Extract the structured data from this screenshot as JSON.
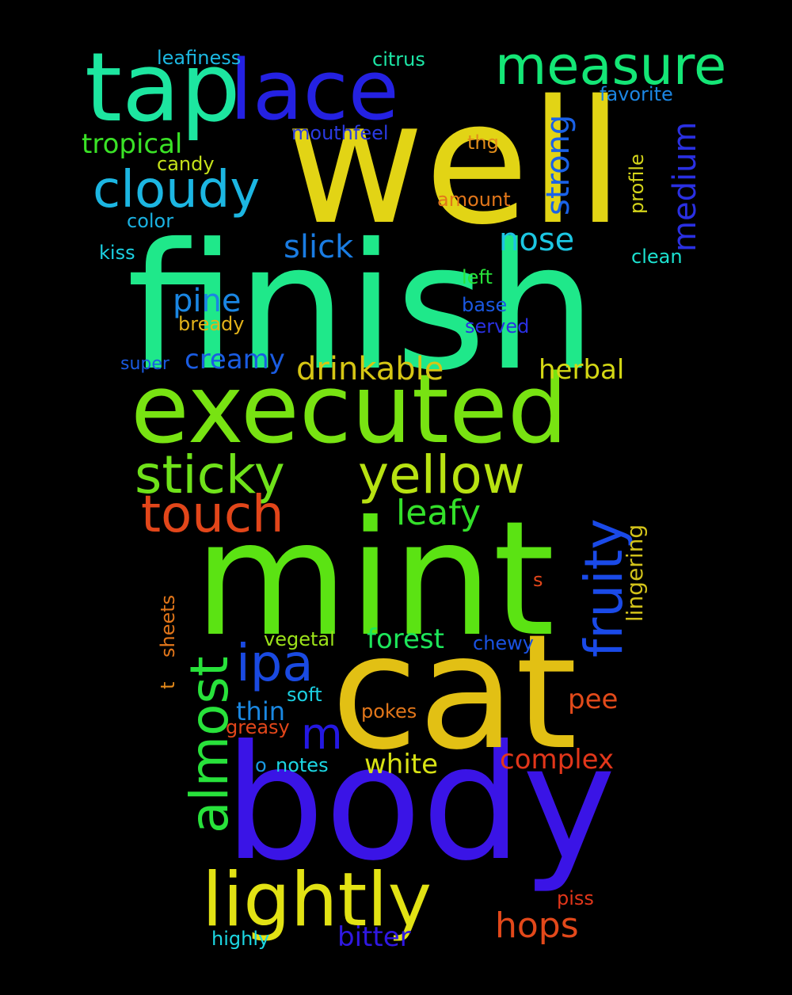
{
  "background": "#000000",
  "words": [
    {
      "text": "finish",
      "color": "#1fe88a"
    },
    {
      "text": "well",
      "color": "#e2d415"
    },
    {
      "text": "mint",
      "color": "#5be313"
    },
    {
      "text": "body",
      "color": "#3a14e6"
    },
    {
      "text": "cat",
      "color": "#e2c014"
    },
    {
      "text": "executed",
      "color": "#78e312"
    },
    {
      "text": "tap",
      "color": "#1de6a0"
    },
    {
      "text": "lace",
      "color": "#2421e2"
    },
    {
      "text": "measure",
      "color": "#14e676"
    },
    {
      "text": "cloudy",
      "color": "#1cb6e2"
    },
    {
      "text": "sticky",
      "color": "#6fe21a"
    },
    {
      "text": "yellow",
      "color": "#b8e212"
    },
    {
      "text": "touch",
      "color": "#e2461a"
    },
    {
      "text": "lightly",
      "color": "#e2e214"
    },
    {
      "text": "almost",
      "color": "#28e23b"
    },
    {
      "text": "fruity",
      "color": "#1a4ae8"
    },
    {
      "text": "ipa",
      "color": "#1a4ae2"
    },
    {
      "text": "strong",
      "color": "#1a62e8"
    },
    {
      "text": "medium",
      "color": "#2a30e2"
    },
    {
      "text": "slick",
      "color": "#1a7ce2"
    },
    {
      "text": "nose",
      "color": "#1cc6e2"
    },
    {
      "text": "pine",
      "color": "#1a86e2"
    },
    {
      "text": "drinkable",
      "color": "#d6c614"
    },
    {
      "text": "herbal",
      "color": "#d4d814"
    },
    {
      "text": "leafy",
      "color": "#34e02a"
    },
    {
      "text": "hops",
      "color": "#e2481a"
    },
    {
      "text": "tropical",
      "color": "#3ae226"
    },
    {
      "text": "forest",
      "color": "#1de65a"
    },
    {
      "text": "complex",
      "color": "#e2361a"
    },
    {
      "text": "white",
      "color": "#d8e214"
    },
    {
      "text": "bitter",
      "color": "#3018e2"
    },
    {
      "text": "pee",
      "color": "#e24a1a"
    },
    {
      "text": "creamy",
      "color": "#1a5ce2"
    },
    {
      "text": "thin",
      "color": "#1a88e2"
    },
    {
      "text": "m",
      "color": "#2418e2"
    },
    {
      "text": "lingering",
      "color": "#d2c21a"
    },
    {
      "text": "leafiness",
      "color": "#1cb8e2"
    },
    {
      "text": "citrus",
      "color": "#1de6a6"
    },
    {
      "text": "favorite",
      "color": "#1c86e2"
    },
    {
      "text": "mouthfeel",
      "color": "#2a3ae2"
    },
    {
      "text": "thg",
      "color": "#e28e1a"
    },
    {
      "text": "candy",
      "color": "#c6e21a"
    },
    {
      "text": "profile",
      "color": "#d4d41a"
    },
    {
      "text": "amount",
      "color": "#e2761a"
    },
    {
      "text": "color",
      "color": "#1ab2e2"
    },
    {
      "text": "kiss",
      "color": "#1cd0e2"
    },
    {
      "text": "clean",
      "color": "#1ce2d0"
    },
    {
      "text": "left",
      "color": "#28e23a"
    },
    {
      "text": "base",
      "color": "#1a58e2"
    },
    {
      "text": "bready",
      "color": "#e2b21a"
    },
    {
      "text": "served",
      "color": "#2a30e2"
    },
    {
      "text": "super",
      "color": "#1a5ae2"
    },
    {
      "text": "s",
      "color": "#e2461a"
    },
    {
      "text": "sheets",
      "color": "#e2761a"
    },
    {
      "text": "vegetal",
      "color": "#9ce21a"
    },
    {
      "text": "chewy",
      "color": "#1a52e2"
    },
    {
      "text": "t",
      "color": "#e2881a"
    },
    {
      "text": "soft",
      "color": "#1cd0e2"
    },
    {
      "text": "pokes",
      "color": "#e2761a"
    },
    {
      "text": "greasy",
      "color": "#e2461a"
    },
    {
      "text": "o",
      "color": "#1a9ae2"
    },
    {
      "text": "notes",
      "color": "#1cd6e2"
    },
    {
      "text": "piss",
      "color": "#e2361a"
    },
    {
      "text": "highly",
      "color": "#1cd6e2"
    }
  ]
}
